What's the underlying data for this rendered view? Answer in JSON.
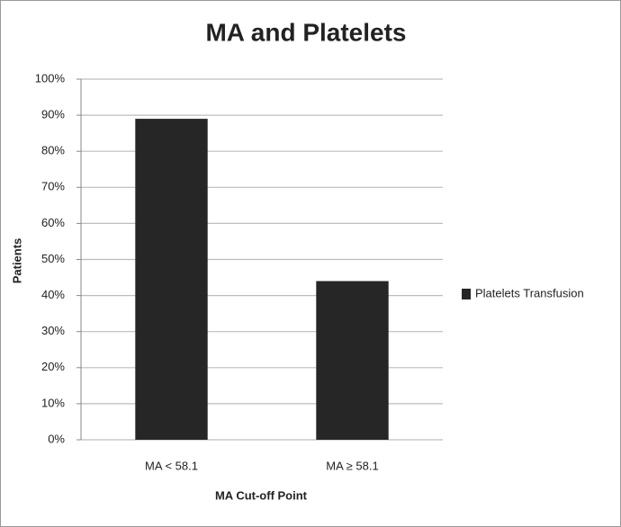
{
  "chart_data": {
    "type": "bar",
    "title": "MA and Platelets",
    "y_label": "Patients",
    "x_label": "MA Cut-off Point",
    "categories": [
      "MA < 58.1",
      "MA ≥ 58.1"
    ],
    "series": [
      {
        "name": "Platelets Transfusion",
        "color": "#262626",
        "values": [
          89,
          44
        ]
      }
    ],
    "ylim": [
      0,
      100
    ],
    "yticks": [
      {
        "value": 0,
        "label": "0%"
      },
      {
        "value": 10,
        "label": "10%"
      },
      {
        "value": 20,
        "label": "20%"
      },
      {
        "value": 30,
        "label": "30%"
      },
      {
        "value": 40,
        "label": "40%"
      },
      {
        "value": 50,
        "label": "50%"
      },
      {
        "value": 60,
        "label": "60%"
      },
      {
        "value": 70,
        "label": "70%"
      },
      {
        "value": 80,
        "label": "80%"
      },
      {
        "value": 90,
        "label": "90%"
      },
      {
        "value": 100,
        "label": "100%"
      }
    ],
    "grid": true,
    "legend": "right"
  }
}
